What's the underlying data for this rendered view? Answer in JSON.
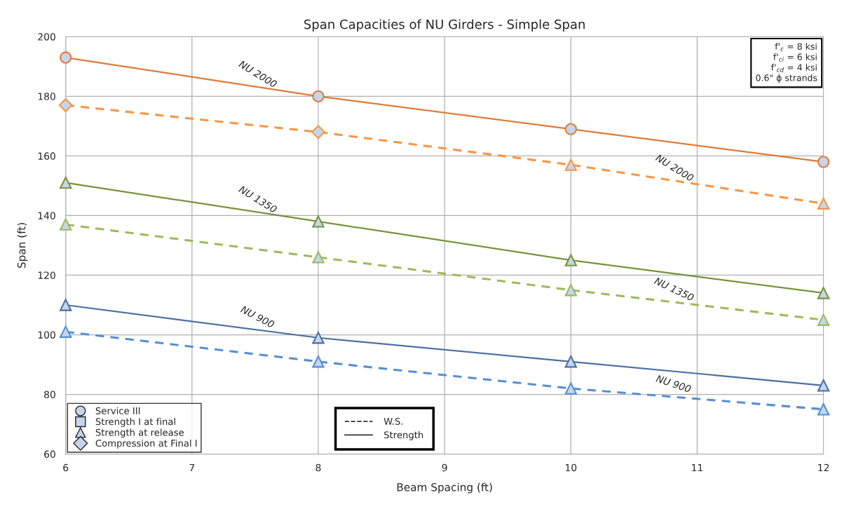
{
  "chart_data": {
    "type": "line",
    "title": "Span Capacities of NU Girders - Simple Span",
    "xlabel": "Beam Spacing (ft)",
    "ylabel": "Span (ft)",
    "x": [
      6,
      8,
      10,
      12
    ],
    "series": [
      {
        "name": "NU 2000",
        "color": "#e07b39",
        "line_style": "solid",
        "marker": "circle",
        "values": [
          193,
          180,
          169,
          158
        ]
      },
      {
        "name": "NU 2000",
        "color": "#f79646",
        "line_style": "dashed",
        "marker": [
          "diamond",
          "diamond",
          "triangle",
          "triangle"
        ],
        "values": [
          177,
          168,
          157,
          144
        ]
      },
      {
        "name": "NU 1350",
        "color": "#77933c",
        "line_style": "solid",
        "marker": "triangle",
        "values": [
          151,
          138,
          125,
          114
        ]
      },
      {
        "name": "NU 1350",
        "color": "#9bbb59",
        "line_style": "dashed",
        "marker": "triangle",
        "values": [
          137,
          126,
          115,
          105
        ]
      },
      {
        "name": "NU 900",
        "color": "#4a6fa5",
        "line_style": "solid",
        "marker": "triangle",
        "values": [
          110,
          99,
          91,
          83
        ]
      },
      {
        "name": "NU 900",
        "color": "#558ed5",
        "line_style": "dashed",
        "marker": "triangle",
        "values": [
          101,
          91,
          82,
          75
        ]
      }
    ],
    "xlim": [
      6,
      12
    ],
    "xticks": [
      6,
      7,
      8,
      9,
      10,
      11,
      12
    ],
    "ylim": [
      60,
      200
    ],
    "yticks": [
      60,
      80,
      100,
      120,
      140,
      160,
      180,
      200
    ],
    "grid": true,
    "annotations": [
      "f'$_{c}$ = 8 ksi\nf'$_{ci}$ = 6 ksi\nf'$_{cd}$ = 4 ksi\n0.6\" ϕ strands",
      "Service III",
      "Strength I at final",
      "Strength at release",
      "Compression at Final I",
      "W.S.",
      "Strength"
    ]
  }
}
